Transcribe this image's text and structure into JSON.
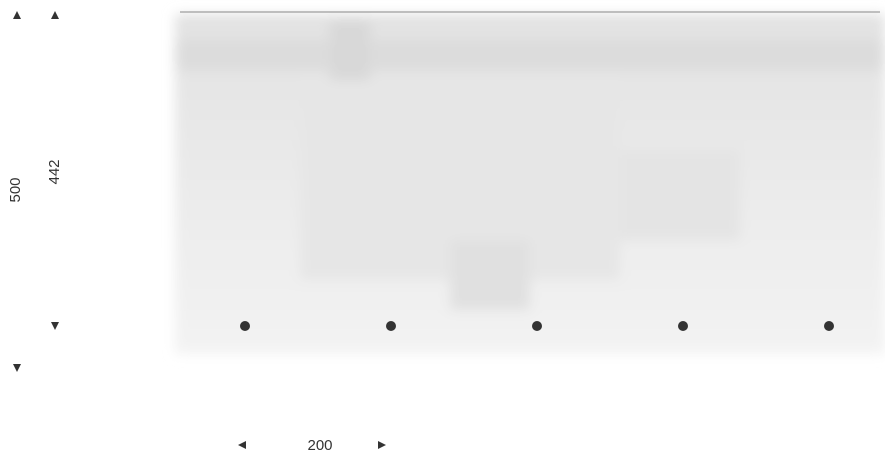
{
  "dimensions": {
    "outer_height": 500,
    "inner_height": 442,
    "spacing": 200
  }
}
